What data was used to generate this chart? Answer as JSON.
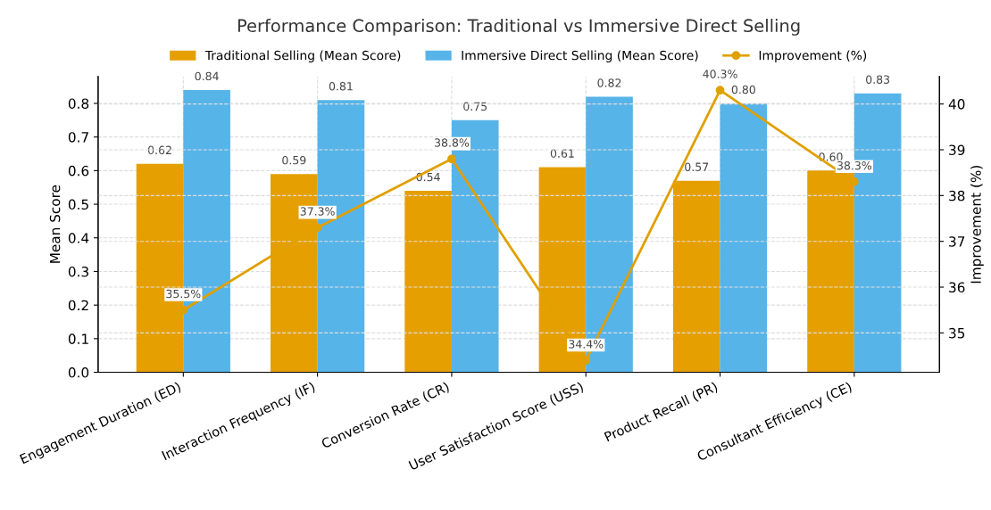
{
  "chart_data": {
    "type": "bar",
    "title": "Performance Comparison: Traditional vs Immersive Direct Selling",
    "xlabel": null,
    "ylabel": "Mean Score",
    "y2label": "Improvement (%)",
    "categories": [
      "Engagement Duration (ED)",
      "Interaction Frequency (IF)",
      "Conversion Rate (CR)",
      "User Satisfaction Score (USS)",
      "Product Recall (PR)",
      "Consultant Efficiency (CE)"
    ],
    "series": [
      {
        "name": "Traditional Selling (Mean Score)",
        "color": "#e69f00",
        "values": [
          0.62,
          0.59,
          0.54,
          0.61,
          0.57,
          0.6
        ],
        "value_labels": [
          "0.62",
          "0.59",
          "0.54",
          "0.61",
          "0.57",
          "0.60"
        ]
      },
      {
        "name": "Immersive Direct Selling (Mean Score)",
        "color": "#56b4e9",
        "values": [
          0.84,
          0.81,
          0.75,
          0.82,
          0.8,
          0.83
        ],
        "value_labels": [
          "0.84",
          "0.81",
          "0.75",
          "0.82",
          "0.80",
          "0.83"
        ]
      },
      {
        "name": "Improvement (%)",
        "type": "line",
        "axis": "y2",
        "color": "#e0a000",
        "values": [
          35.5,
          37.3,
          38.8,
          34.4,
          40.3,
          38.3
        ],
        "value_labels": [
          "35.5%",
          "37.3%",
          "38.8%",
          "34.4%",
          "40.3%",
          "38.3%"
        ]
      }
    ],
    "ylim": [
      0,
      0.88
    ],
    "yticks": [
      {
        "value": 0,
        "label": "0.0"
      },
      0.1,
      0.2,
      0.3,
      0.4,
      0.5,
      0.6,
      0.7,
      0.8
    ],
    "y2lim": [
      34.14,
      40.6
    ],
    "y2ticks": [
      35,
      36,
      37,
      38,
      39,
      40
    ],
    "grid": true,
    "legend": "top",
    "marker": "circle",
    "line_style": "solid"
  }
}
